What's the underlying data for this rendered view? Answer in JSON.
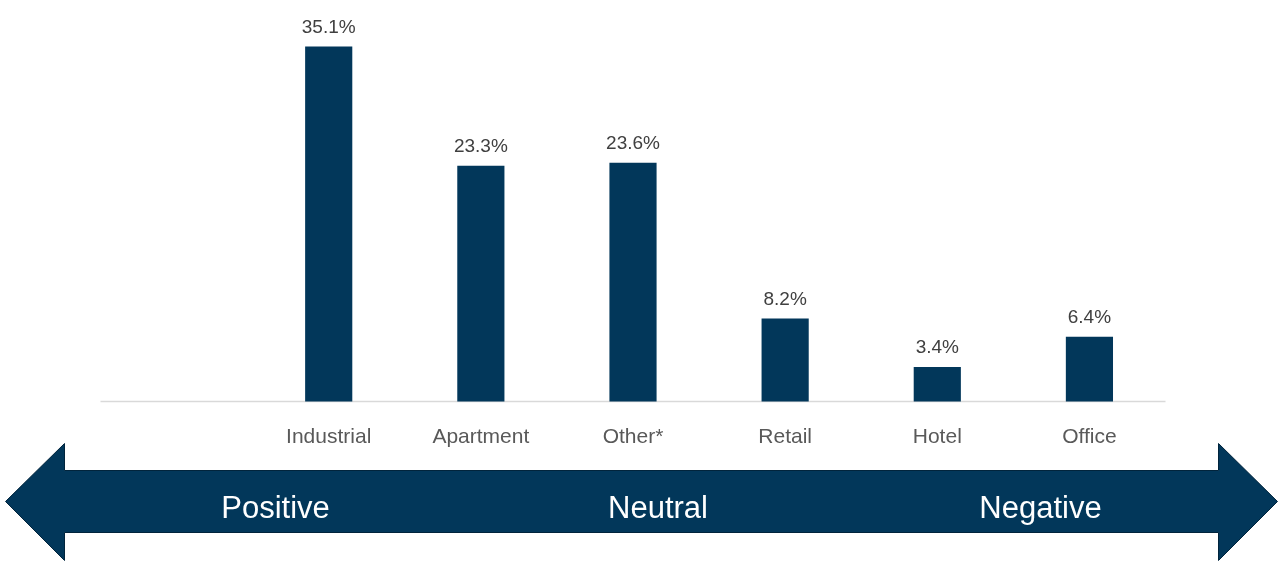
{
  "chart_data": {
    "type": "bar",
    "categories": [
      null,
      "Industrial",
      "Apartment",
      "Other*",
      "Retail",
      "Hotel",
      "Office"
    ],
    "values": [
      null,
      35.1,
      23.3,
      23.6,
      8.2,
      3.4,
      6.4
    ],
    "value_labels": [
      null,
      "35.1%",
      "23.3%",
      "23.6%",
      "8.2%",
      "3.4%",
      "6.4%"
    ],
    "color": "#02375a",
    "annotations": [
      "Positive",
      "Neutral",
      "Negative"
    ]
  }
}
